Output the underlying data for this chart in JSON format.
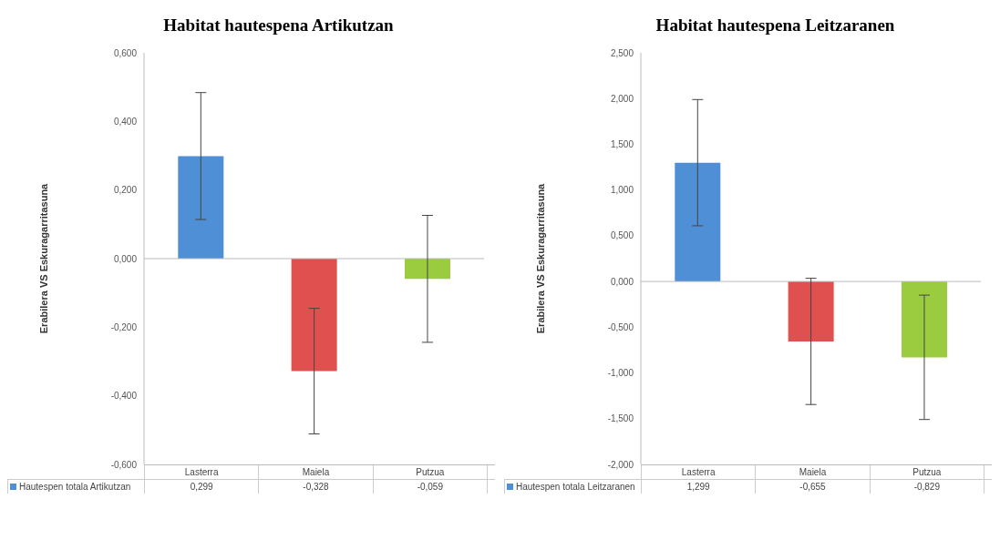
{
  "chart_data": [
    {
      "type": "bar",
      "title": "Habitat hautespena Artikutzan",
      "ylabel": "Erabilera VS Eskuragarritasuna",
      "categories": [
        "Lasterra",
        "Maiela",
        "Putzua"
      ],
      "series": [
        {
          "name": "Hautespen totala Artikutzan",
          "color": "#4f8fd6",
          "colors": [
            "#4f8fd6",
            "#e0504f",
            "#9bcc3f"
          ],
          "values": [
            0.299,
            -0.328,
            -0.059
          ],
          "value_labels": [
            "0,299",
            "-0,328",
            "-0,059"
          ],
          "errors": [
            0.185,
            0.183,
            0.185
          ]
        }
      ],
      "ylim": [
        -0.6,
        0.6
      ],
      "yticks": [
        {
          "value": -0.6,
          "label": "-0,600"
        },
        {
          "value": -0.4,
          "label": "-0,400"
        },
        {
          "value": -0.2,
          "label": "-0,200"
        },
        {
          "value": 0,
          "label": "0,000"
        },
        {
          "value": 0.2,
          "label": "0,200"
        },
        {
          "value": 0.4,
          "label": "0,400"
        },
        {
          "value": 0.6,
          "label": "0,600"
        }
      ],
      "legend": "bottom"
    },
    {
      "type": "bar",
      "title": "Habitat hautespena Leitzaranen",
      "ylabel": "Erabilera VS Eskuragarritasuna",
      "categories": [
        "Lasterra",
        "Maiela",
        "Putzua"
      ],
      "series": [
        {
          "name": "Hautespen totala Leitzaranen",
          "color": "#4f8fd6",
          "colors": [
            "#4f8fd6",
            "#e0504f",
            "#9bcc3f"
          ],
          "values": [
            1.299,
            -0.655,
            -0.829
          ],
          "value_labels": [
            "1,299",
            "-0,655",
            "-0,829"
          ],
          "errors": [
            0.69,
            0.69,
            0.68
          ]
        }
      ],
      "ylim": [
        -2,
        2.5
      ],
      "yticks": [
        {
          "value": -2,
          "label": "-2,000"
        },
        {
          "value": -1.5,
          "label": "-1,500"
        },
        {
          "value": -1,
          "label": "-1,000"
        },
        {
          "value": -0.5,
          "label": "-0,500"
        },
        {
          "value": 0,
          "label": "0,000"
        },
        {
          "value": 0.5,
          "label": "0,500"
        },
        {
          "value": 1,
          "label": "1,000"
        },
        {
          "value": 1.5,
          "label": "1,500"
        },
        {
          "value": 2,
          "label": "2,000"
        },
        {
          "value": 2.5,
          "label": "2,500"
        }
      ],
      "legend": "bottom"
    }
  ]
}
